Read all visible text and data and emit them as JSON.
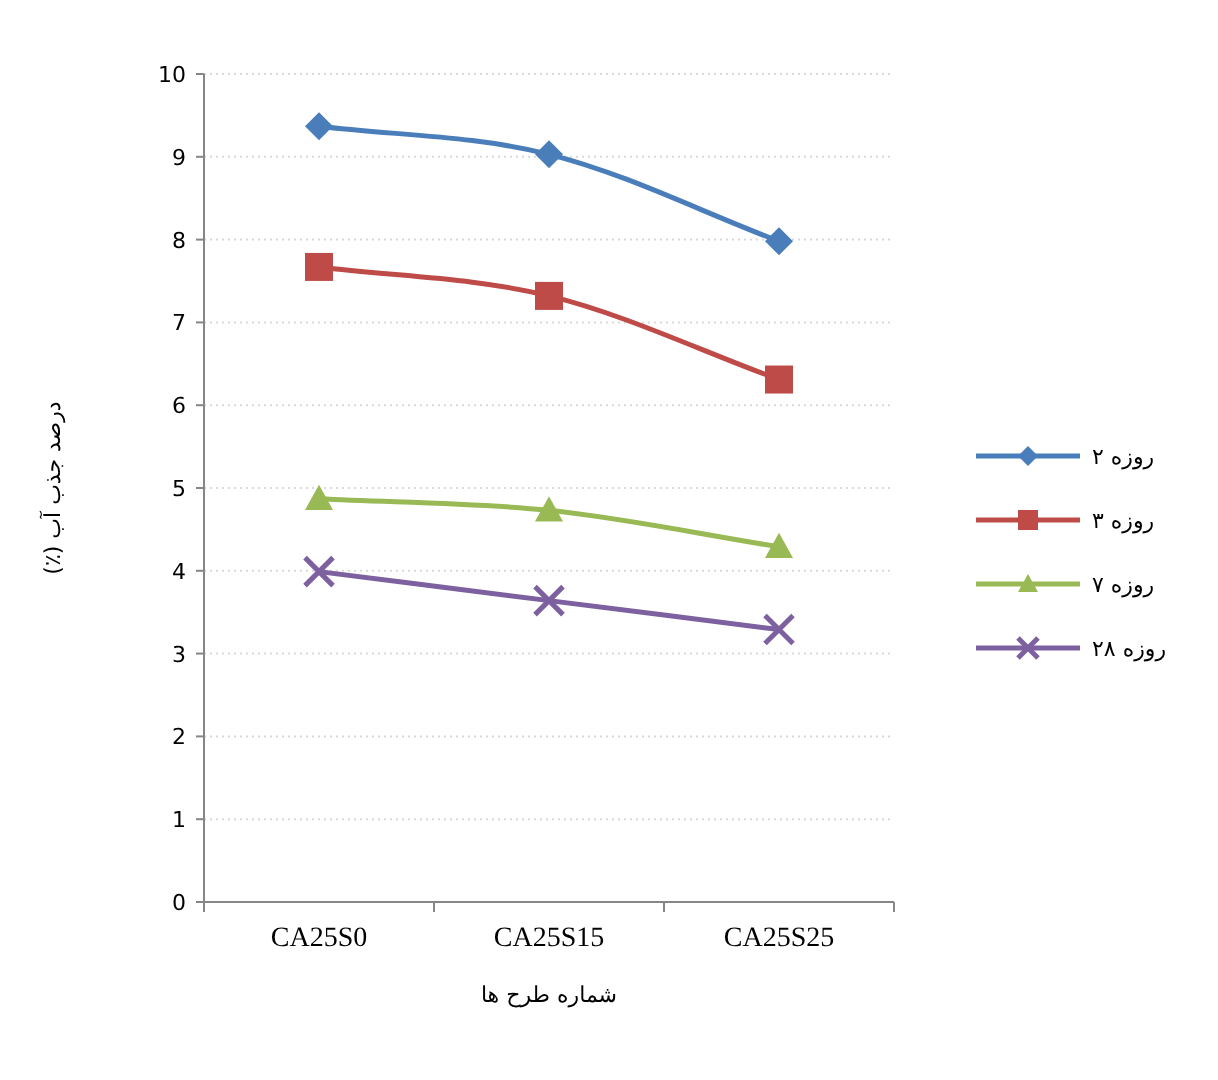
{
  "chart_data": {
    "type": "line",
    "xlabel": "شماره طرح ها",
    "ylabel": "درصد جذب آب (٪)",
    "categories": [
      "CA25S0",
      "CA25S15",
      "CA25S25"
    ],
    "series": [
      {
        "name": "۲ روزه",
        "color": "#4a7ebb",
        "marker": "diamond",
        "values": [
          9.37,
          9.03,
          7.98
        ]
      },
      {
        "name": "۳ روزه",
        "color": "#be4b48",
        "marker": "square",
        "values": [
          7.67,
          7.32,
          6.31
        ]
      },
      {
        "name": "۷ روزه",
        "color": "#98b954",
        "marker": "triangle",
        "values": [
          4.87,
          4.73,
          4.29
        ]
      },
      {
        "name": "۲۸ روزه",
        "color": "#7d60a0",
        "marker": "cross",
        "values": [
          3.99,
          3.64,
          3.29
        ]
      }
    ],
    "ylim": [
      0,
      10
    ],
    "yticks": [
      0,
      1,
      2,
      3,
      4,
      5,
      6,
      7,
      8,
      9,
      10
    ],
    "grid": "y",
    "legend": "right"
  }
}
